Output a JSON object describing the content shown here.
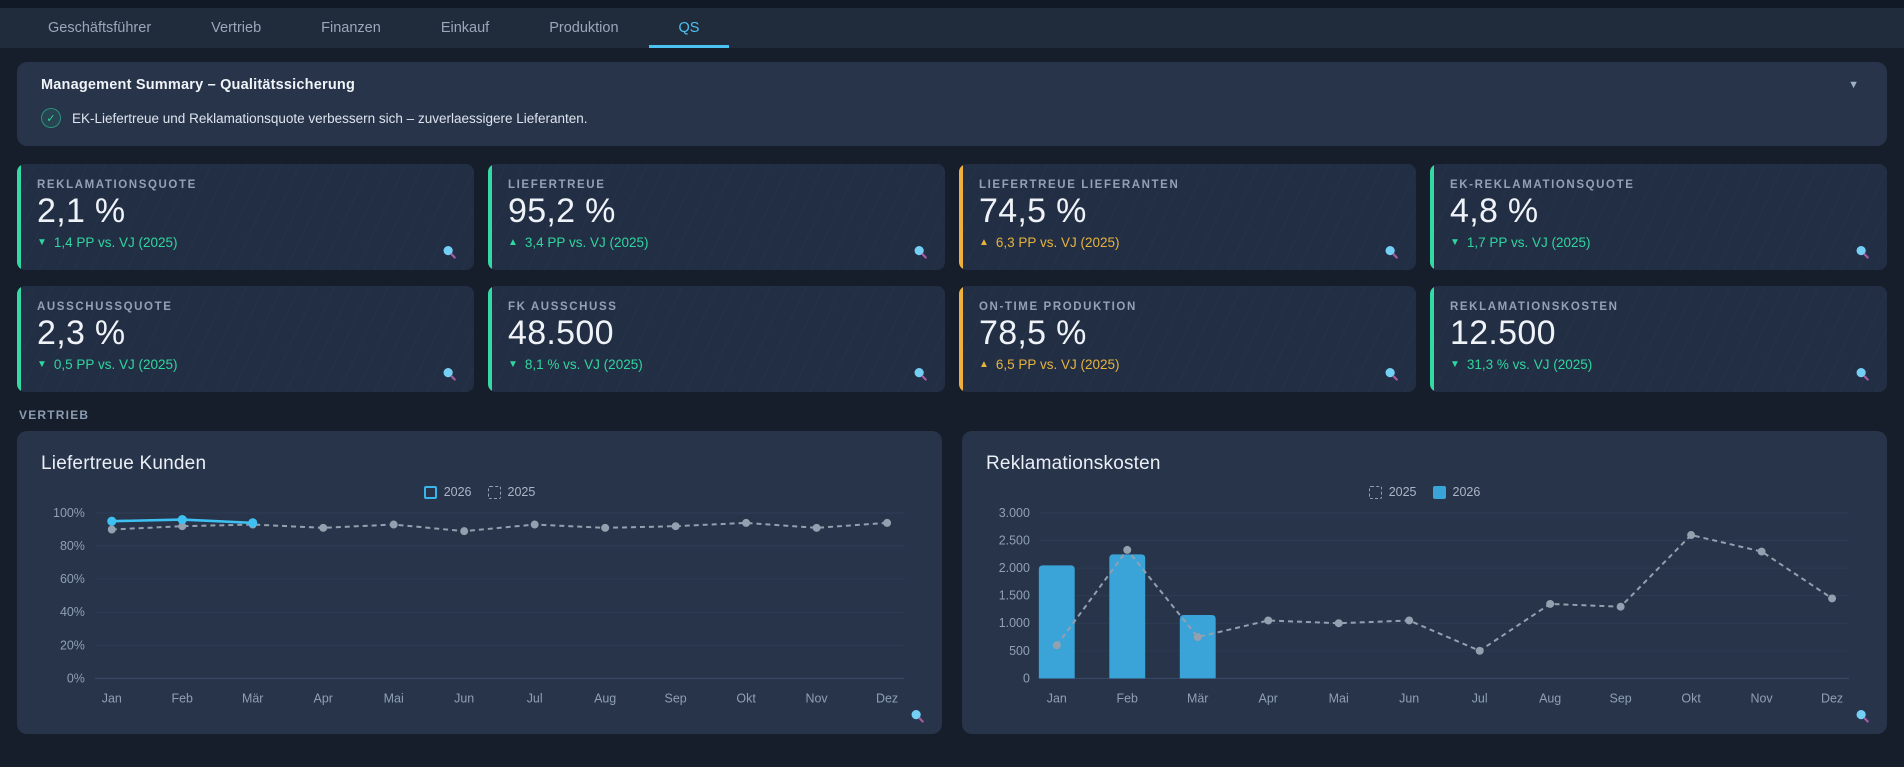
{
  "tabs": {
    "items": [
      {
        "label": "Geschäftsführer",
        "active": false
      },
      {
        "label": "Vertrieb",
        "active": false
      },
      {
        "label": "Finanzen",
        "active": false
      },
      {
        "label": "Einkauf",
        "active": false
      },
      {
        "label": "Produktion",
        "active": false
      },
      {
        "label": "QS",
        "active": true
      }
    ]
  },
  "summary": {
    "title": "Management Summary – Qualitätssicherung",
    "collapse_icon": "▼",
    "bullets": [
      {
        "icon": "check",
        "text": "EK-Liefertreue und Reklamationsquote verbessern sich – zuverlaessigere Lieferanten."
      }
    ]
  },
  "kpi_cards": [
    {
      "title": "REKLAMATIONSQUOTE",
      "value": "2,1 %",
      "arrow": "▼",
      "delta_text": "1,4 PP vs. VJ (2025)",
      "accent": "green"
    },
    {
      "title": "LIEFERTREUE",
      "value": "95,2 %",
      "arrow": "▲",
      "delta_text": "3,4 PP vs. VJ (2025)",
      "accent": "green"
    },
    {
      "title": "LIEFERTREUE LIEFERANTEN",
      "value": "74,5 %",
      "arrow": "▲",
      "delta_text": "6,3 PP vs. VJ (2025)",
      "accent": "amber"
    },
    {
      "title": "EK-REKLAMATIONSQUOTE",
      "value": "4,8 %",
      "arrow": "▼",
      "delta_text": "1,7 PP vs. VJ (2025)",
      "accent": "green"
    },
    {
      "title": "AUSSCHUSSQUOTE",
      "value": "2,3 %",
      "arrow": "▼",
      "delta_text": "0,5 PP vs. VJ (2025)",
      "accent": "green"
    },
    {
      "title": "FK AUSSCHUSS",
      "value": "48.500",
      "arrow": "▼",
      "delta_text": "8,1 % vs. VJ (2025)",
      "accent": "green"
    },
    {
      "title": "ON-TIME PRODUKTION",
      "value": "78,5 %",
      "arrow": "▲",
      "delta_text": "6,5 PP vs. VJ (2025)",
      "accent": "amber"
    },
    {
      "title": "REKLAMATIONSKOSTEN",
      "value": "12.500",
      "arrow": "▼",
      "delta_text": "31,3 % vs. VJ (2025)",
      "accent": "green"
    }
  ],
  "section_label": "VERTRIEB",
  "colors": {
    "accent_green": "#35d9a4",
    "accent_amber": "#edb13c",
    "line_blue": "#3ec1f2",
    "bar_blue": "#3aa4d9",
    "dashed_gray": "#93a0b0",
    "grid": "#2e3c55",
    "axis_text": "#90a0b4"
  },
  "chart_data": [
    {
      "type": "line",
      "title": "Liefertreue Kunden",
      "categories": [
        "Jan",
        "Feb",
        "Mär",
        "Apr",
        "Mai",
        "Jun",
        "Jul",
        "Aug",
        "Sep",
        "Okt",
        "Nov",
        "Dez"
      ],
      "ylim": [
        0,
        100
      ],
      "yticks": [
        0,
        20,
        40,
        60,
        80,
        100
      ],
      "ytick_format": "percent",
      "legend": [
        {
          "label": "2026",
          "swatch": "outline"
        },
        {
          "label": "2025",
          "swatch": "dashed"
        }
      ],
      "series": [
        {
          "name": "2025",
          "type": "line",
          "style": "dashed",
          "color": "#93a0b0",
          "values": [
            90,
            92,
            93,
            91,
            93,
            89,
            93,
            91,
            92,
            94,
            91,
            94
          ]
        },
        {
          "name": "2026",
          "type": "line",
          "style": "solid",
          "color": "#3ec1f2",
          "values": [
            95,
            96,
            94
          ]
        }
      ]
    },
    {
      "type": "bar-line",
      "title": "Reklamationskosten",
      "categories": [
        "Jan",
        "Feb",
        "Mär",
        "Apr",
        "Mai",
        "Jun",
        "Jul",
        "Aug",
        "Sep",
        "Okt",
        "Nov",
        "Dez"
      ],
      "ylim": [
        0,
        3000
      ],
      "yticks": [
        0,
        500,
        1000,
        1500,
        2000,
        2500,
        3000
      ],
      "ytick_format": "thousands-de",
      "legend": [
        {
          "label": "2025",
          "swatch": "dashed"
        },
        {
          "label": "2026",
          "swatch": "fill"
        }
      ],
      "series": [
        {
          "name": "2026",
          "type": "bar",
          "color": "#3aa4d9",
          "values": [
            2050,
            2250,
            1150
          ]
        },
        {
          "name": "2025",
          "type": "line",
          "style": "dashed",
          "color": "#93a0b0",
          "values": [
            600,
            2330,
            750,
            1050,
            1000,
            1050,
            500,
            1350,
            1300,
            2600,
            2300,
            1450
          ]
        }
      ]
    }
  ]
}
